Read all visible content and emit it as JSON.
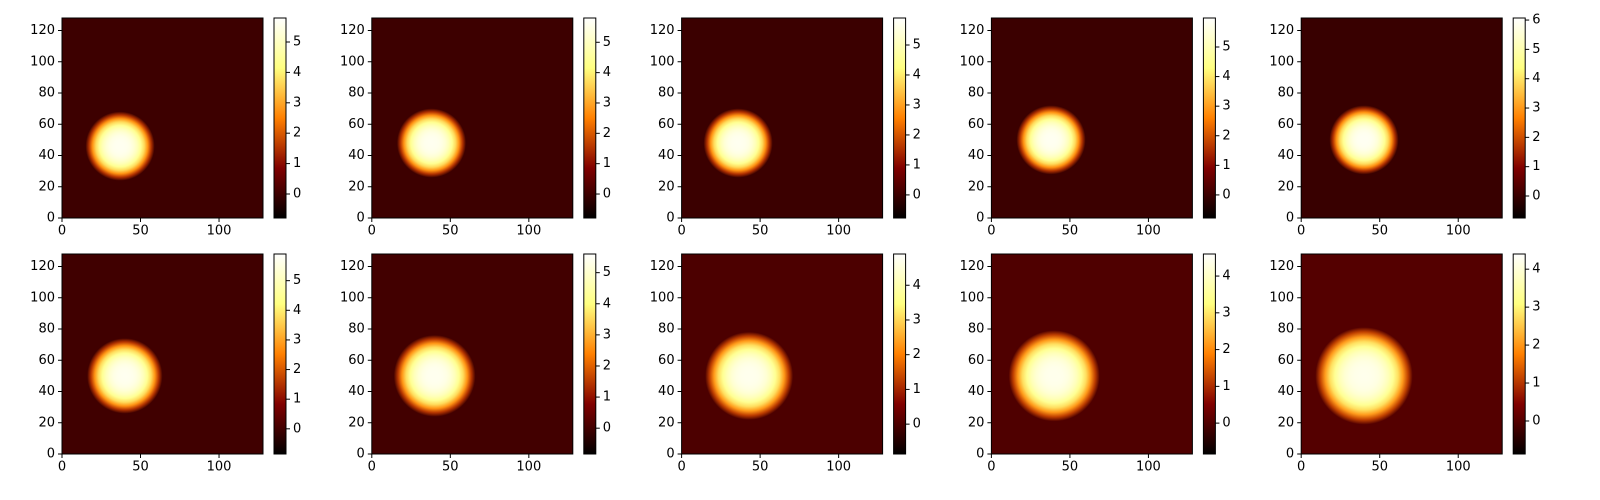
{
  "chart_data": [
    {
      "type": "heatmap",
      "colormap": "afmhot",
      "xlim": [
        0,
        128
      ],
      "ylim": [
        0,
        128
      ],
      "xticks": [
        0,
        50,
        100
      ],
      "yticks": [
        0,
        20,
        40,
        60,
        80,
        100,
        120
      ],
      "clim": [
        -0.79,
        5.79
      ],
      "cticks": [
        0,
        1,
        2,
        3,
        4,
        5
      ],
      "spot": {
        "x": 37,
        "y": 46,
        "peak": 5.6,
        "radius": 22
      }
    },
    {
      "type": "heatmap",
      "colormap": "afmhot",
      "xlim": [
        0,
        128
      ],
      "ylim": [
        0,
        128
      ],
      "xticks": [
        0,
        50,
        100
      ],
      "yticks": [
        0,
        20,
        40,
        60,
        80,
        100,
        120
      ],
      "clim": [
        -0.79,
        5.8
      ],
      "cticks": [
        0,
        1,
        2,
        3,
        4,
        5
      ],
      "spot": {
        "x": 38,
        "y": 48,
        "peak": 5.6,
        "radius": 22
      }
    },
    {
      "type": "heatmap",
      "colormap": "afmhot",
      "xlim": [
        0,
        128
      ],
      "ylim": [
        0,
        128
      ],
      "xticks": [
        0,
        50,
        100
      ],
      "yticks": [
        0,
        20,
        40,
        60,
        80,
        100,
        120
      ],
      "clim": [
        -0.77,
        5.9
      ],
      "cticks": [
        0,
        1,
        2,
        3,
        4,
        5
      ],
      "spot": {
        "x": 36,
        "y": 48,
        "peak": 5.7,
        "radius": 22
      }
    },
    {
      "type": "heatmap",
      "colormap": "afmhot",
      "xlim": [
        0,
        128
      ],
      "ylim": [
        0,
        128
      ],
      "xticks": [
        0,
        50,
        100
      ],
      "yticks": [
        0,
        20,
        40,
        60,
        80,
        100,
        120
      ],
      "clim": [
        -0.78,
        5.98
      ],
      "cticks": [
        0,
        1,
        2,
        3,
        4,
        5
      ],
      "spot": {
        "x": 38,
        "y": 50,
        "peak": 5.8,
        "radius": 22
      }
    },
    {
      "type": "heatmap",
      "colormap": "afmhot",
      "xlim": [
        0,
        128
      ],
      "ylim": [
        0,
        128
      ],
      "xticks": [
        0,
        50,
        100
      ],
      "yticks": [
        0,
        20,
        40,
        60,
        80,
        100,
        120
      ],
      "clim": [
        -0.75,
        6.07
      ],
      "cticks": [
        0,
        1,
        2,
        3,
        4,
        5,
        6
      ],
      "spot": {
        "x": 40,
        "y": 50,
        "peak": 5.9,
        "radius": 22
      }
    },
    {
      "type": "heatmap",
      "colormap": "afmhot",
      "xlim": [
        0,
        128
      ],
      "ylim": [
        0,
        128
      ],
      "xticks": [
        0,
        50,
        100
      ],
      "yticks": [
        0,
        20,
        40,
        60,
        80,
        100,
        120
      ],
      "clim": [
        -0.85,
        5.9
      ],
      "cticks": [
        0,
        1,
        2,
        3,
        4,
        5
      ],
      "spot": {
        "x": 40,
        "y": 50,
        "peak": 5.7,
        "radius": 24
      }
    },
    {
      "type": "heatmap",
      "colormap": "afmhot",
      "xlim": [
        0,
        128
      ],
      "ylim": [
        0,
        128
      ],
      "xticks": [
        0,
        50,
        100
      ],
      "yticks": [
        0,
        20,
        40,
        60,
        80,
        100,
        120
      ],
      "clim": [
        -0.83,
        5.6
      ],
      "cticks": [
        0,
        1,
        2,
        3,
        4,
        5
      ],
      "spot": {
        "x": 40,
        "y": 50,
        "peak": 5.4,
        "radius": 26
      }
    },
    {
      "type": "heatmap",
      "colormap": "afmhot",
      "xlim": [
        0,
        128
      ],
      "ylim": [
        0,
        128
      ],
      "xticks": [
        0,
        50,
        100
      ],
      "yticks": [
        0,
        20,
        40,
        60,
        80,
        100,
        120
      ],
      "clim": [
        -0.86,
        4.9
      ],
      "cticks": [
        0,
        1,
        2,
        3,
        4
      ],
      "spot": {
        "x": 43,
        "y": 50,
        "peak": 4.7,
        "radius": 28
      }
    },
    {
      "type": "heatmap",
      "colormap": "afmhot",
      "xlim": [
        0,
        128
      ],
      "ylim": [
        0,
        128
      ],
      "xticks": [
        0,
        50,
        100
      ],
      "yticks": [
        0,
        20,
        40,
        60,
        80,
        100,
        120
      ],
      "clim": [
        -0.84,
        4.6
      ],
      "cticks": [
        0,
        1,
        2,
        3,
        4
      ],
      "spot": {
        "x": 40,
        "y": 50,
        "peak": 4.4,
        "radius": 29
      }
    },
    {
      "type": "heatmap",
      "colormap": "afmhot",
      "xlim": [
        0,
        128
      ],
      "ylim": [
        0,
        128
      ],
      "xticks": [
        0,
        50,
        100
      ],
      "yticks": [
        0,
        20,
        40,
        60,
        80,
        100,
        120
      ],
      "clim": [
        -0.87,
        4.4
      ],
      "cticks": [
        0,
        1,
        2,
        3,
        4
      ],
      "spot": {
        "x": 40,
        "y": 50,
        "peak": 4.2,
        "radius": 31
      }
    }
  ]
}
